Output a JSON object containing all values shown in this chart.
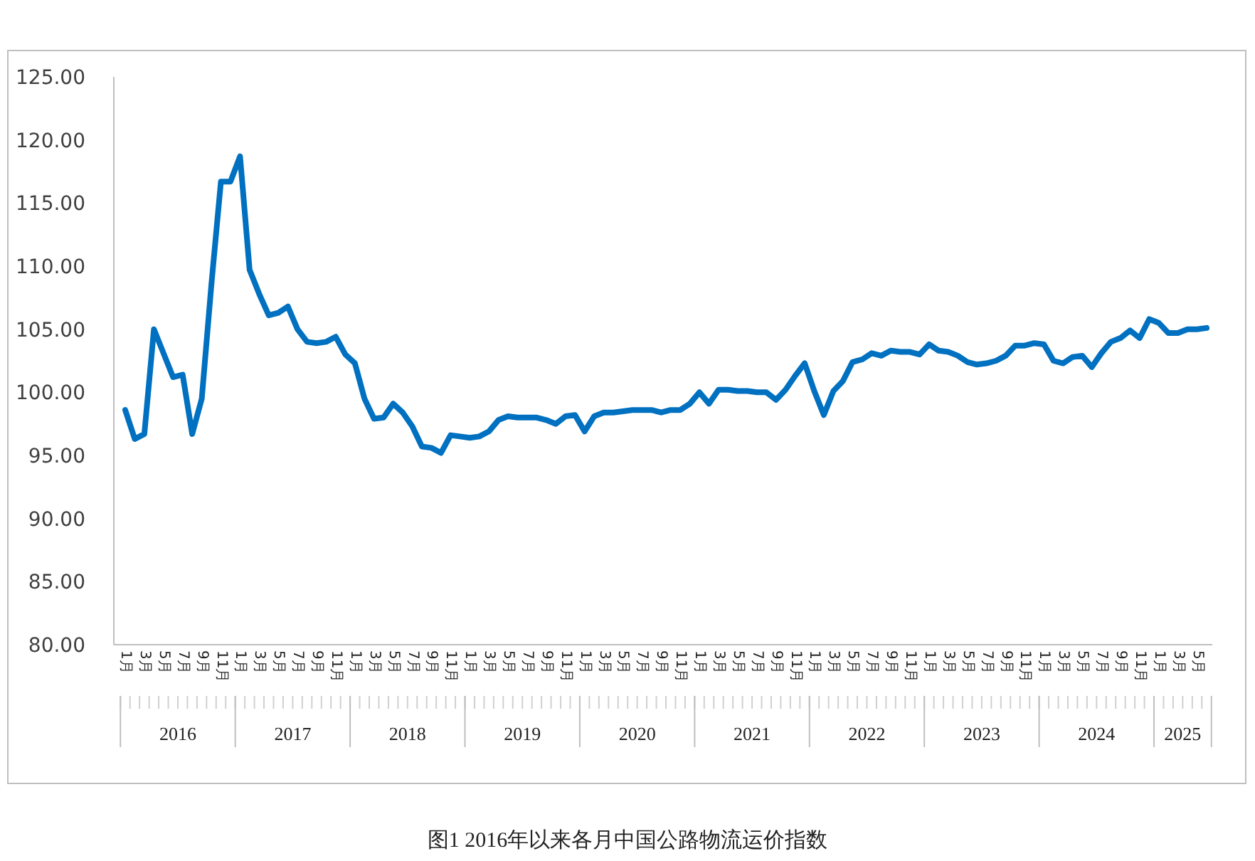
{
  "chart_data": {
    "type": "line",
    "title": "图1  2016年以来各月中国公路物流运价指数",
    "categories": [
      "1月",
      null,
      "3月",
      null,
      "5月",
      null,
      "7月",
      null,
      "9月",
      null,
      "11月",
      null,
      "1月",
      null,
      "3月",
      null,
      "5月",
      null,
      "7月",
      null,
      "9月",
      null,
      "11月",
      null,
      "1月",
      null,
      "3月",
      null,
      "5月",
      null,
      "7月",
      null,
      "9月",
      null,
      "11月",
      null,
      "1月",
      null,
      "3月",
      null,
      "5月",
      null,
      "7月",
      null,
      "9月",
      null,
      "11月",
      null,
      "1月",
      null,
      "3月",
      null,
      "5月",
      null,
      "7月",
      null,
      "9月",
      null,
      "11月",
      null,
      "1月",
      null,
      "3月",
      null,
      "5月",
      null,
      "7月",
      null,
      "9月",
      null,
      "11月",
      null,
      "1月",
      null,
      "3月",
      null,
      "5月",
      null,
      "7月",
      null,
      "9月",
      null,
      "11月",
      null,
      "1月",
      null,
      "3月",
      null,
      "5月",
      null,
      "7月",
      null,
      "9月",
      null,
      "11月",
      null,
      "1月",
      null,
      "3月",
      null,
      "5月",
      null,
      "7月",
      null,
      "9月",
      null,
      "11月",
      null,
      "1月",
      null,
      "3月",
      null,
      "5月",
      null
    ],
    "series": [
      {
        "color": "#0070c0",
        "values": [
          98.6,
          96.3,
          96.7,
          105.0,
          103.1,
          101.2,
          101.4,
          96.7,
          99.5,
          108.5,
          116.7,
          116.7,
          118.7,
          109.7,
          107.8,
          106.1,
          106.3,
          106.8,
          105.0,
          104.0,
          103.9,
          104.0,
          104.4,
          103.0,
          102.3,
          99.5,
          97.9,
          98.0,
          99.1,
          98.4,
          97.3,
          95.7,
          95.6,
          95.2,
          96.6,
          96.5,
          96.4,
          96.5,
          96.9,
          97.8,
          98.1,
          98.0,
          98.0,
          98.0,
          97.8,
          97.5,
          98.1,
          98.2,
          96.9,
          98.1,
          98.4,
          98.4,
          98.5,
          98.6,
          98.6,
          98.6,
          98.4,
          98.6,
          98.6,
          99.1,
          100.0,
          99.1,
          100.2,
          100.2,
          100.1,
          100.1,
          100.0,
          100.0,
          99.4,
          100.2,
          101.3,
          102.3,
          100.1,
          98.2,
          100.1,
          100.9,
          102.4,
          102.6,
          103.1,
          102.9,
          103.3,
          103.2,
          103.2,
          103.0,
          103.8,
          103.3,
          103.2,
          102.9,
          102.4,
          102.2,
          102.3,
          102.5,
          102.9,
          103.7,
          103.7,
          103.9,
          103.8,
          102.5,
          102.3,
          102.8,
          102.9,
          102.0,
          103.1,
          104.0,
          104.3,
          104.9,
          104.3,
          105.8,
          105.5,
          104.7,
          104.7,
          105.0,
          105.0,
          105.1
        ]
      }
    ],
    "ylim": [
      80,
      125
    ],
    "yticks": [
      {
        "value": 80,
        "label": "80.00"
      },
      {
        "value": 85,
        "label": "85.00"
      },
      {
        "value": 90,
        "label": "90.00"
      },
      {
        "value": 95,
        "label": "95.00"
      },
      {
        "value": 100,
        "label": "100.00"
      },
      {
        "value": 105,
        "label": "105.00"
      },
      {
        "value": 110,
        "label": "110.00"
      },
      {
        "value": 115,
        "label": "115.00"
      },
      {
        "value": 120,
        "label": "120.00"
      },
      {
        "value": 125,
        "label": "125.00"
      }
    ],
    "annotations": [
      "2016",
      "2017",
      "2018",
      "2019",
      "2020",
      "2021",
      "2022",
      "2023",
      "2024",
      "2025"
    ],
    "marker": "none",
    "line_style": "solid",
    "grid": false
  }
}
